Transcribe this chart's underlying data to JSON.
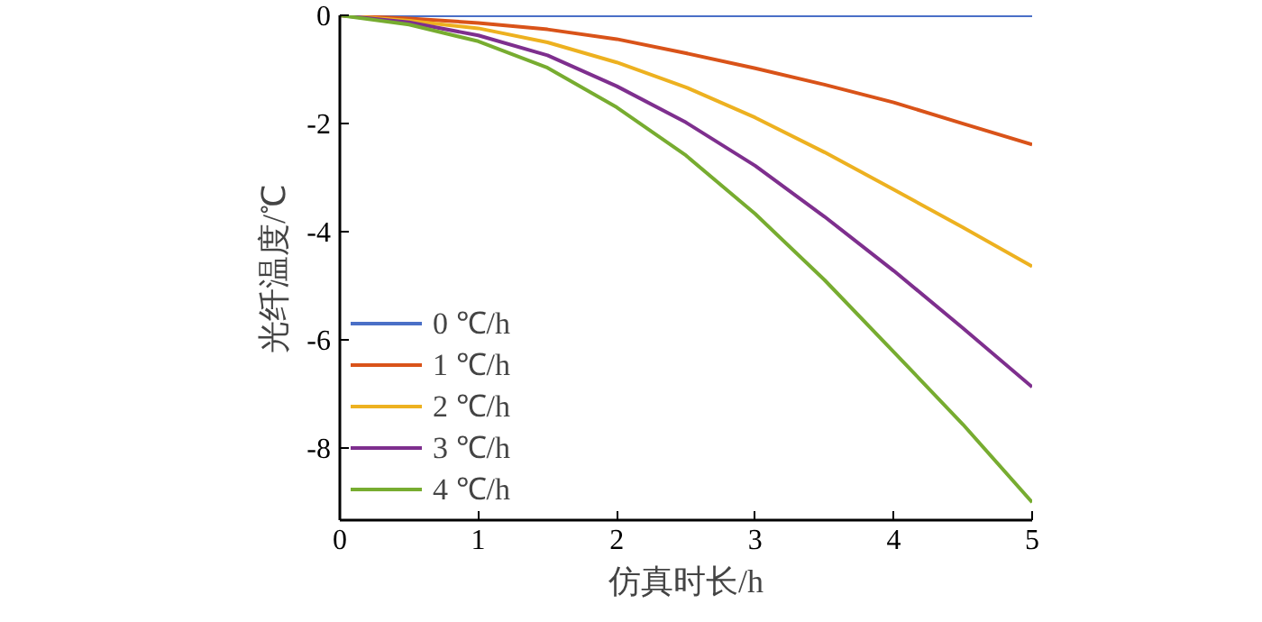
{
  "chart_data": {
    "type": "line",
    "xlabel": "仿真时长/h",
    "ylabel": "光纤温度/℃",
    "x": [
      0,
      0.5,
      1,
      1.5,
      2,
      2.5,
      3,
      3.5,
      4,
      4.5,
      5
    ],
    "xlim": [
      0,
      5
    ],
    "ylim": [
      -9.33,
      0
    ],
    "xticks": [
      0,
      1,
      2,
      3,
      4,
      5
    ],
    "yticks": [
      0,
      -2,
      -4,
      -6,
      -8
    ],
    "grid": false,
    "legend": "bottom left",
    "line_style": "solid",
    "series": [
      {
        "name": "0 ℃/h",
        "color": "#4a6fc7",
        "values": [
          0,
          0,
          0,
          0,
          0,
          0,
          0,
          0,
          0,
          0,
          0
        ]
      },
      {
        "name": "1 ℃/h",
        "color": "#d95319",
        "values": [
          0,
          -0.06,
          -0.14,
          -0.26,
          -0.44,
          -0.7,
          -0.98,
          -1.28,
          -1.61,
          -2.0,
          -2.39
        ]
      },
      {
        "name": "2 ℃/h",
        "color": "#edb120",
        "values": [
          0,
          -0.1,
          -0.24,
          -0.5,
          -0.87,
          -1.33,
          -1.89,
          -2.53,
          -3.22,
          -3.92,
          -4.64
        ]
      },
      {
        "name": "3 ℃/h",
        "color": "#7e2f8e",
        "values": [
          0,
          -0.13,
          -0.37,
          -0.74,
          -1.31,
          -1.98,
          -2.78,
          -3.72,
          -4.72,
          -5.78,
          -6.87
        ]
      },
      {
        "name": "4 ℃/h",
        "color": "#77ac30",
        "values": [
          0,
          -0.17,
          -0.48,
          -0.97,
          -1.7,
          -2.59,
          -3.67,
          -4.89,
          -6.22,
          -7.56,
          -9.0
        ]
      }
    ]
  }
}
